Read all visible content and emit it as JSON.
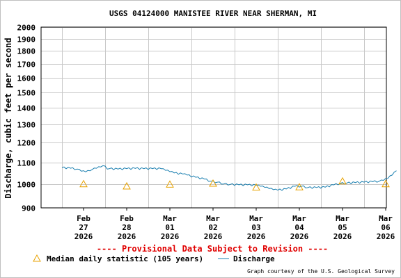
{
  "chart_data": {
    "type": "line",
    "title": "USGS 04124000 MANISTEE RIVER NEAR SHERMAN, MI",
    "ylabel": "Discharge, cubic feet per second",
    "xlabel": "",
    "ylim": [
      900,
      2000
    ],
    "yscale": "log",
    "yticks": [
      900,
      1000,
      1100,
      1200,
      1300,
      1400,
      1500,
      1600,
      1700,
      1800,
      1900,
      2000
    ],
    "xlim": [
      0,
      7.5
    ],
    "xticks": [
      {
        "x": 0.5,
        "lines": [
          "Feb",
          "27",
          "2026"
        ]
      },
      {
        "x": 1.5,
        "lines": [
          "Feb",
          "28",
          "2026"
        ]
      },
      {
        "x": 2.5,
        "lines": [
          "Mar",
          "01",
          "2026"
        ]
      },
      {
        "x": 3.5,
        "lines": [
          "Mar",
          "02",
          "2026"
        ]
      },
      {
        "x": 4.5,
        "lines": [
          "Mar",
          "03",
          "2026"
        ]
      },
      {
        "x": 5.5,
        "lines": [
          "Mar",
          "04",
          "2026"
        ]
      },
      {
        "x": 6.5,
        "lines": [
          "Mar",
          "05",
          "2026"
        ]
      },
      {
        "x": 7.5,
        "lines": [
          "Mar",
          "06",
          "2026"
        ]
      }
    ],
    "grid": true,
    "series": [
      {
        "name": "Discharge",
        "color": "#1a7fb0",
        "x": [
          0.0,
          0.2,
          0.35,
          0.45,
          0.55,
          0.65,
          0.7,
          0.8,
          0.9,
          1.0,
          1.05,
          1.1,
          1.3,
          1.5,
          1.7,
          1.9,
          2.1,
          2.3,
          2.4,
          2.5,
          2.6,
          2.8,
          2.9,
          3.1,
          3.3,
          3.45,
          3.6,
          3.75,
          3.9,
          4.1,
          4.3,
          4.5,
          4.6,
          4.7,
          4.8,
          4.9,
          5.0,
          5.2,
          5.4,
          5.55,
          5.7,
          5.9,
          6.1,
          6.3,
          6.45,
          6.6,
          6.8,
          7.0,
          7.2,
          7.35,
          7.45,
          7.55,
          7.65,
          7.75
        ],
        "y": [
          1075,
          1072,
          1068,
          1058,
          1055,
          1060,
          1066,
          1072,
          1078,
          1082,
          1068,
          1070,
          1068,
          1070,
          1071,
          1070,
          1070,
          1070,
          1062,
          1056,
          1050,
          1045,
          1040,
          1030,
          1022,
          1012,
          1008,
          1000,
          998,
          996,
          996,
          994,
          990,
          985,
          980,
          975,
          973,
          978,
          990,
          990,
          984,
          984,
          986,
          996,
          1002,
          1004,
          1006,
          1008,
          1010,
          1012,
          1016,
          1025,
          1040,
          1060
        ]
      }
    ],
    "markers": {
      "name": "Median daily statistic (105 years)",
      "color": "#e8a200",
      "shape": "triangle",
      "x": [
        0.5,
        1.5,
        2.5,
        3.5,
        4.5,
        5.5,
        6.5,
        7.5
      ],
      "y": [
        1000,
        990,
        998,
        1002,
        985,
        986,
        1012,
        1000
      ]
    },
    "annotation": "---- Provisional Data Subject to Revision ----",
    "legend": {
      "placement": "bottom",
      "entries": [
        "Median daily statistic (105 years)",
        "Discharge"
      ]
    },
    "credit": "Graph courtesy of the U.S. Geological Survey"
  }
}
